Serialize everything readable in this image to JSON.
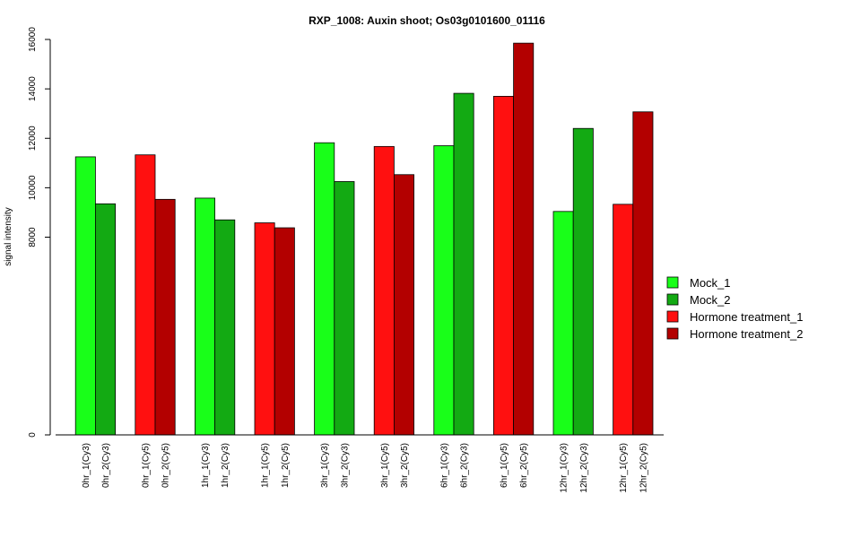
{
  "chart_data": {
    "type": "bar",
    "title": "RXP_1008: Auxin shoot; Os03g0101600_01116",
    "ylabel": "signal intensity",
    "xlabel": "",
    "ylim": [
      0,
      16000
    ],
    "y_ticks": [
      0,
      8000,
      10000,
      12000,
      14000,
      16000
    ],
    "grid": false,
    "legend_position": "right",
    "series": [
      {
        "name": "Mock_1",
        "color": "#19FF19"
      },
      {
        "name": "Mock_2",
        "color": "#13AA13"
      },
      {
        "name": "Hormone treatment_1",
        "color": "#FF1010"
      },
      {
        "name": "Hormone treatment_2",
        "color": "#B30000"
      }
    ],
    "bars": [
      {
        "label": "0hr_1(Cy3)",
        "value": 11250,
        "series": 0
      },
      {
        "label": "0hr_2(Cy3)",
        "value": 9350,
        "series": 1
      },
      {
        "label": "0hr_1(Cy5)",
        "value": 11330,
        "series": 2
      },
      {
        "label": "0hr_2(Cy5)",
        "value": 9530,
        "series": 3
      },
      {
        "label": "1hr_1(Cy3)",
        "value": 9580,
        "series": 0
      },
      {
        "label": "1hr_2(Cy3)",
        "value": 8700,
        "series": 1
      },
      {
        "label": "1hr_1(Cy5)",
        "value": 8580,
        "series": 2
      },
      {
        "label": "1hr_2(Cy5)",
        "value": 8380,
        "series": 3
      },
      {
        "label": "3hr_1(Cy3)",
        "value": 11820,
        "series": 0
      },
      {
        "label": "3hr_2(Cy3)",
        "value": 10250,
        "series": 1
      },
      {
        "label": "3hr_1(Cy5)",
        "value": 11670,
        "series": 2
      },
      {
        "label": "3hr_2(Cy5)",
        "value": 10530,
        "series": 3
      },
      {
        "label": "6hr_1(Cy3)",
        "value": 11700,
        "series": 0
      },
      {
        "label": "6hr_2(Cy3)",
        "value": 13820,
        "series": 1
      },
      {
        "label": "6hr_1(Cy5)",
        "value": 13700,
        "series": 2
      },
      {
        "label": "6hr_2(Cy5)",
        "value": 15850,
        "series": 3
      },
      {
        "label": "12hr_1(Cy3)",
        "value": 9040,
        "series": 0
      },
      {
        "label": "12hr_2(Cy3)",
        "value": 12400,
        "series": 1
      },
      {
        "label": "12hr_1(Cy5)",
        "value": 9330,
        "series": 2
      },
      {
        "label": "12hr_2(Cy5)",
        "value": 13070,
        "series": 3
      }
    ]
  }
}
